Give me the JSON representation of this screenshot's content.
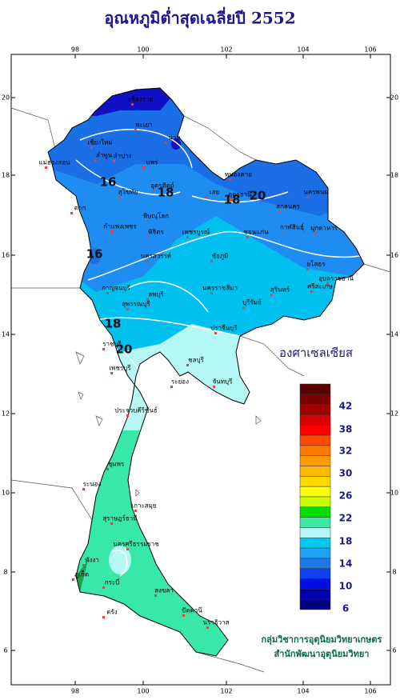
{
  "title": "อุณหภูมิต่ำสุดเฉลี่ยปี 2552",
  "lon_ticks": [
    "98",
    "100",
    "102",
    "104",
    "106"
  ],
  "lat_ticks": [
    "20",
    "18",
    "16",
    "14",
    "12",
    "10",
    "8",
    "6"
  ],
  "contour_labels": [
    "16",
    "18",
    "18",
    "20",
    "16",
    "18",
    "20"
  ],
  "provinces": [
    "เชียงราย",
    "พะเยา",
    "น่าน",
    "เชียงใหม่",
    "ลำพูน",
    "ลำปาง",
    "แพร่",
    "แม่ฮ่องสอน",
    "อุตรดิตถ์",
    "สุโขทัย",
    "ตาก",
    "พิษณุโลก",
    "กำแพงเพชร",
    "พิจิตร",
    "เพชรบูรณ์",
    "เลย",
    "หนองคาย",
    "อุดรธานี",
    "สกลนคร",
    "นครพนม",
    "กาฬสินธุ์",
    "มุกดาหาร",
    "ขอนแก่น",
    "ชัยภูมิ",
    "นครสวรรค์",
    "ลพบุรี",
    "นครราชสีมา",
    "บุรีรัมย์",
    "สุรินทร์",
    "อุบลราชธานี",
    "ศรีสะเกษ",
    "ยโสธร",
    "กาญจนบุรี",
    "สุพรรณบุรี",
    "ปราจีนบุรี",
    "ชลบุรี",
    "ระยอง",
    "จันทบุรี",
    "ราชบุรี",
    "เพชรบุรี",
    "ประจวบคีรีขันธ์",
    "ชุมพร",
    "ระนอง",
    "สุราษฎร์ธานี",
    "เกาะสมุย",
    "นครศรีธรรมราช",
    "พังงา",
    "ภูเก็ต",
    "กระบี่",
    "ตรัง",
    "สงขลา",
    "ปัตตานี",
    "นราธิวาส"
  ],
  "legend": {
    "title": "องศาเซลเซียส",
    "labels": [
      "42",
      "38",
      "32",
      "30",
      "26",
      "22",
      "18",
      "14",
      "10",
      "6"
    ]
  },
  "credits": [
    "กลุ่มวิชาการอุตุนิยมวิทยาเกษตร",
    "สำนักพัฒนาอุตุนิยมวิทยา"
  ]
}
